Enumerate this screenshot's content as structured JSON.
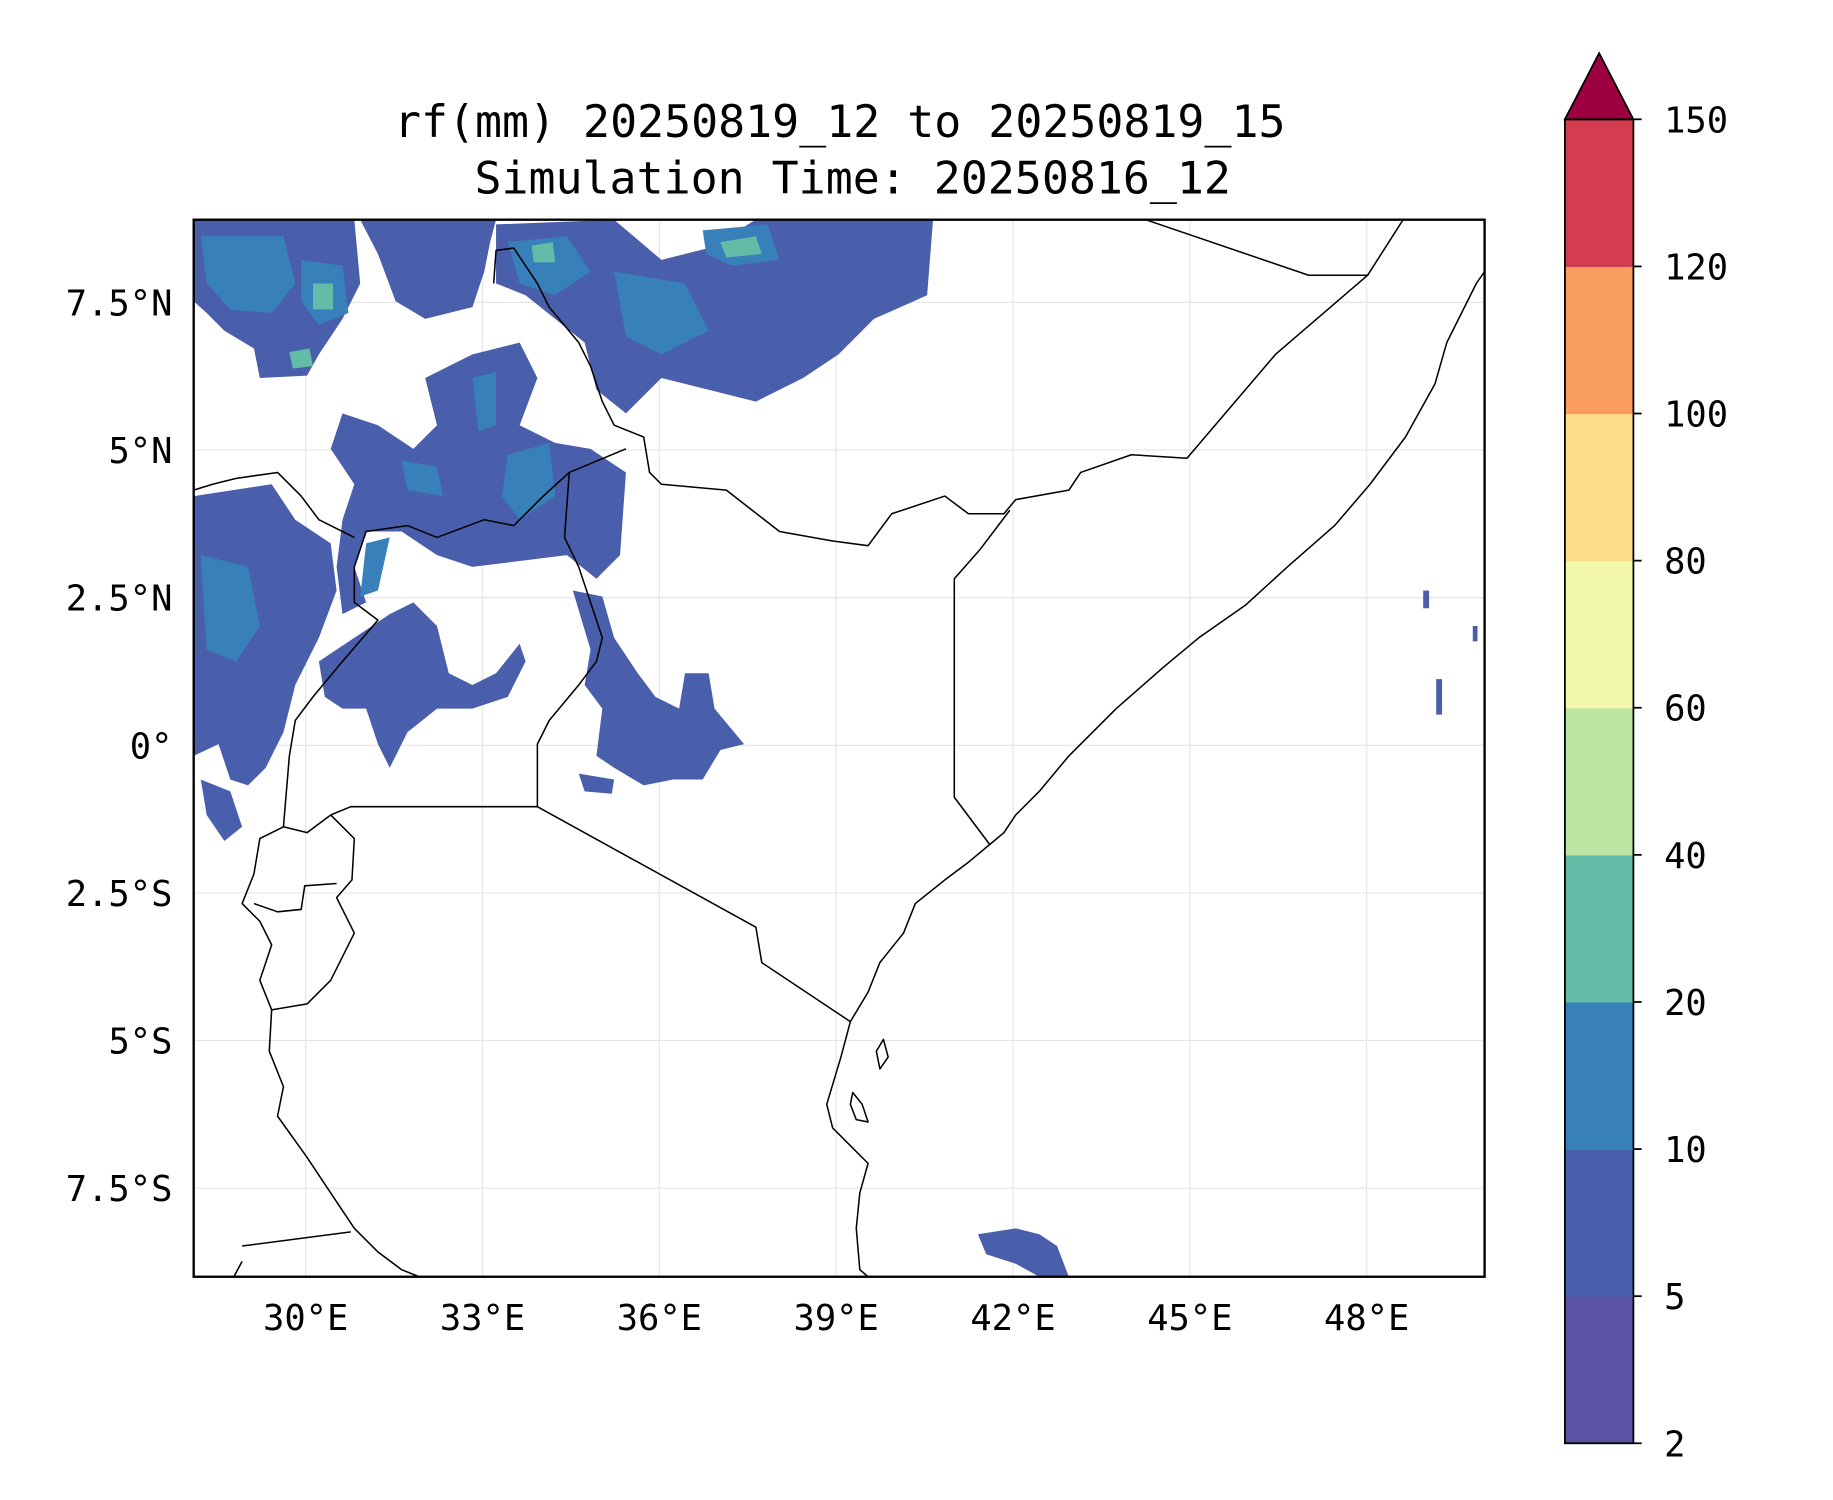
{
  "chart_data": {
    "type": "heatmap",
    "subtype": "filled-contour map",
    "title": "rf(mm) 20250819_12 to 20250819_15",
    "subtitle": "Simulation Time: 20250816_12",
    "variable": "rf(mm)",
    "xlim": [
      28.1,
      50.0
    ],
    "ylim": [
      -9.0,
      8.9
    ],
    "grid": true,
    "x_ticks": [
      {
        "value": 30,
        "label": "30°E"
      },
      {
        "value": 33,
        "label": "33°E"
      },
      {
        "value": 36,
        "label": "36°E"
      },
      {
        "value": 39,
        "label": "39°E"
      },
      {
        "value": 42,
        "label": "42°E"
      },
      {
        "value": 45,
        "label": "45°E"
      },
      {
        "value": 48,
        "label": "48°E"
      }
    ],
    "y_ticks": [
      {
        "value": 7.5,
        "label": "7.5°N"
      },
      {
        "value": 5,
        "label": "5°N"
      },
      {
        "value": 2.5,
        "label": "2.5°N"
      },
      {
        "value": 0,
        "label": "0°"
      },
      {
        "value": -2.5,
        "label": "2.5°S"
      },
      {
        "value": -5,
        "label": "5°S"
      },
      {
        "value": -7.5,
        "label": "7.5°S"
      }
    ],
    "colorbar": {
      "placement": "right",
      "extend": "max",
      "levels": [
        2,
        5,
        10,
        20,
        40,
        60,
        80,
        100,
        120,
        150
      ],
      "tick_labels": [
        "2",
        "5",
        "10",
        "20",
        "40",
        "60",
        "80",
        "100",
        "120",
        "150"
      ],
      "colors": [
        "#5a52a3",
        "#4a5fab",
        "#3880b9",
        "#62bca8",
        "#bde4a0",
        "#f2f9ad",
        "#fbdd8a",
        "#f99d5c",
        "#d43d50"
      ],
      "extend_color": "#9e0142"
    }
  }
}
